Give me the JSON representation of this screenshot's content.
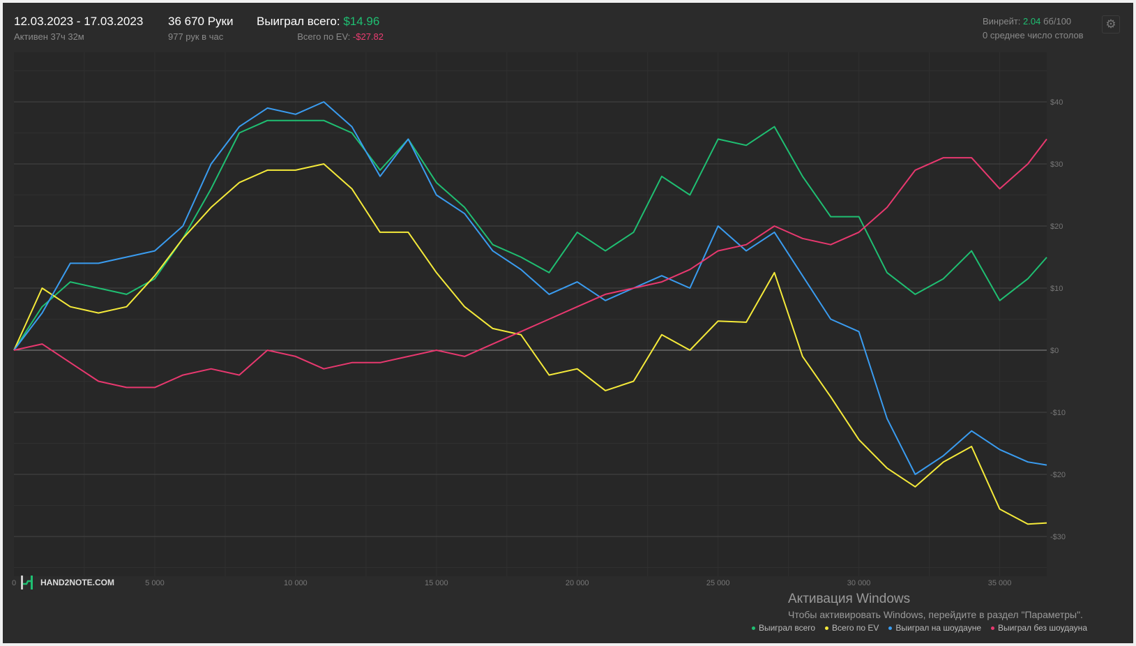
{
  "header": {
    "date_range": "12.03.2023 - 17.03.2023",
    "active": "Активен 37ч 32м",
    "hands": "36 670 Руки",
    "hands_per_hour": "977 рук в час",
    "won_label": "Выиграл всего:",
    "won_value": "$14.96",
    "ev_label": "Всего по EV:",
    "ev_value": "-$27.82",
    "winrate_label": "Винрейт:",
    "winrate_value": "2.04",
    "winrate_unit": "бб/100",
    "avg_tables": "0 среднее число столов"
  },
  "settings_icon": "gear-icon",
  "logo_text": "HAND2NOTE.COM",
  "watermark": {
    "title": "Активация Windows",
    "text": "Чтобы активировать Windows, перейдите в раздел \"Параметры\"."
  },
  "colors": {
    "green": "#1fbf72",
    "yellow": "#f5ea3a",
    "blue": "#3a9cf0",
    "red": "#e8386f"
  },
  "chart_data": {
    "type": "line",
    "xlim": [
      0,
      36670
    ],
    "ylim": [
      -37,
      48
    ],
    "grid": true,
    "legend_placement": "bottom-right",
    "x_ticks": [
      0,
      5000,
      10000,
      15000,
      20000,
      25000,
      30000,
      35000
    ],
    "x_tick_labels": [
      "0",
      "5 000",
      "10 000",
      "15 000",
      "20 000",
      "25 000",
      "30 000",
      "35 000"
    ],
    "y_ticks": [
      -30,
      -20,
      -10,
      0,
      10,
      20,
      30,
      40
    ],
    "y_tick_labels": [
      "-$30",
      "-$20",
      "-$10",
      "$0",
      "$10",
      "$20",
      "$30",
      "$40"
    ],
    "x": [
      0,
      1000,
      2000,
      3000,
      4000,
      5000,
      6000,
      7000,
      8000,
      9000,
      10000,
      11000,
      12000,
      13000,
      14000,
      15000,
      16000,
      17000,
      18000,
      19000,
      20000,
      21000,
      22000,
      23000,
      24000,
      25000,
      26000,
      27000,
      28000,
      29000,
      30000,
      31000,
      32000,
      33000,
      34000,
      35000,
      36000,
      36670
    ],
    "series": [
      {
        "name": "Выиграл всего",
        "color": "#1fbf72",
        "values": [
          0,
          7,
          11,
          10,
          9,
          11.5,
          18,
          26,
          35,
          37,
          37,
          37,
          35,
          29,
          34,
          27,
          23,
          17,
          15,
          12.5,
          19,
          16,
          19,
          28,
          25,
          34,
          33,
          36,
          28,
          21.5,
          21.5,
          12.5,
          9,
          11.5,
          16,
          8,
          11.5,
          14.96
        ]
      },
      {
        "name": "Всего по EV",
        "color": "#f5ea3a",
        "values": [
          0,
          10,
          7,
          6,
          7,
          12,
          18,
          23,
          27,
          29,
          29,
          30,
          26,
          19,
          19,
          12.5,
          7,
          3.5,
          2.5,
          -4,
          -3,
          -6.5,
          -5,
          2.5,
          0,
          4.7,
          4.5,
          12.5,
          -1,
          -7.5,
          -14.4,
          -19,
          -22,
          -18,
          -15.5,
          -25.6,
          -28,
          -27.82
        ]
      },
      {
        "name": "Выиграл на шоудауне",
        "color": "#3a9cf0",
        "values": [
          0,
          6,
          14,
          14,
          15,
          16,
          20,
          30,
          36,
          39,
          38,
          40,
          36,
          28,
          34,
          25,
          22,
          16,
          13,
          9,
          11,
          8,
          10,
          12,
          10,
          20,
          16,
          19,
          12,
          5,
          3,
          -11,
          -20,
          -17,
          -13,
          -16,
          -18,
          -18.5
        ]
      },
      {
        "name": "Выиграл без шоудауна",
        "color": "#e8386f",
        "values": [
          0,
          1,
          -2,
          -5,
          -6,
          -6,
          -4,
          -3,
          -4,
          0,
          -1,
          -3,
          -2,
          -2,
          -1,
          0,
          -1,
          1,
          3,
          5,
          7,
          9,
          10,
          11,
          13,
          16,
          17,
          20,
          18,
          17,
          19,
          23,
          29,
          31,
          31,
          26,
          30,
          34
        ]
      }
    ]
  }
}
